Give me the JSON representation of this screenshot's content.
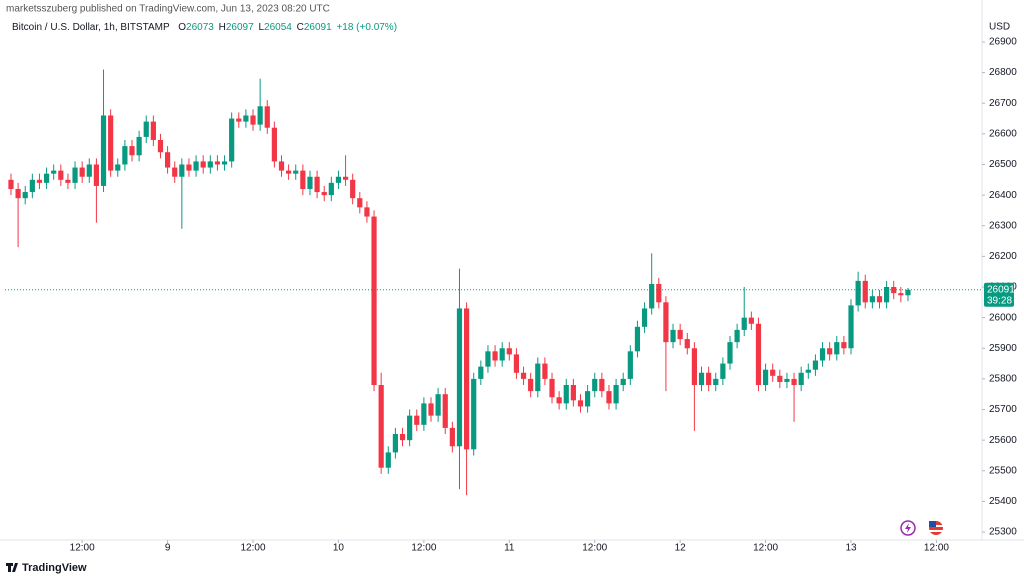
{
  "header": {
    "published": "marketsszuberg published on TradingView.com, Jun 13, 2023 08:20 UTC",
    "symbol": "Bitcoin / U.S. Dollar, 1h, BITSTAMP",
    "ohlc_labels": [
      "O",
      "H",
      "L",
      "C"
    ],
    "change": "+18 (+0.07%)",
    "currency": "USD",
    "countdown": "39:28"
  },
  "footer": {
    "brand": "TradingView"
  },
  "chart_data": {
    "type": "candlestick",
    "up_color": "#089981",
    "down_color": "#f23645",
    "grid": false,
    "ylim": [
      25274,
      27037
    ],
    "yticks": [
      25300,
      25400,
      25500,
      25600,
      25700,
      25800,
      25900,
      26000,
      26100,
      26200,
      26300,
      26400,
      26500,
      26600,
      26700,
      26800,
      26900
    ],
    "xlim": [
      -0.84,
      136.4
    ],
    "xticks": [
      {
        "value": 10,
        "label": "12:00"
      },
      {
        "value": 22,
        "label": "9"
      },
      {
        "value": 34,
        "label": "12:00"
      },
      {
        "value": 46,
        "label": "10"
      },
      {
        "value": 58,
        "label": "12:00"
      },
      {
        "value": 70,
        "label": "11"
      },
      {
        "value": 82,
        "label": "12:00"
      },
      {
        "value": 94,
        "label": "12"
      },
      {
        "value": 106,
        "label": "12:00"
      },
      {
        "value": 118,
        "label": "13"
      },
      {
        "value": 130,
        "label": "12:00"
      }
    ],
    "open": [
      26450,
      26420,
      26390,
      26410,
      26450,
      26440,
      26470,
      26480,
      26450,
      26440,
      26490,
      26460,
      26500,
      26430,
      26660,
      26480,
      26500,
      26560,
      26530,
      26590,
      26640,
      26580,
      26540,
      26490,
      26460,
      26500,
      26480,
      26510,
      26490,
      26510,
      26500,
      26510,
      26650,
      26640,
      26660,
      26630,
      26690,
      26620,
      26510,
      26480,
      26470,
      26480,
      26420,
      26460,
      26410,
      26400,
      26440,
      26460,
      26450,
      26390,
      26360,
      26330,
      25780,
      25510,
      25560,
      25620,
      25600,
      25680,
      25650,
      25720,
      25680,
      25750,
      25640,
      25580,
      26030,
      25570,
      25800,
      25840,
      25890,
      25860,
      25900,
      25880,
      25820,
      25800,
      25760,
      25850,
      25800,
      25740,
      25720,
      25780,
      25730,
      25710,
      25760,
      25800,
      25760,
      25720,
      25780,
      25800,
      25890,
      25970,
      26030,
      26110,
      26050,
      25920,
      25960,
      25930,
      25900,
      25780,
      25820,
      25780,
      25800,
      25850,
      25920,
      25960,
      26000,
      25980,
      25780,
      25830,
      25810,
      25790,
      25800,
      25780,
      25820,
      25830,
      25860,
      25900,
      25880,
      25920,
      25900,
      26040,
      26120,
      26050,
      26070,
      26050,
      26100,
      26080,
      26073
    ],
    "high": [
      26470,
      26440,
      26430,
      26470,
      26470,
      26490,
      26500,
      26500,
      26470,
      26510,
      26510,
      26520,
      26520,
      26810,
      26680,
      26520,
      26580,
      26580,
      26610,
      26660,
      26660,
      26600,
      26560,
      26510,
      26520,
      26520,
      26530,
      26530,
      26530,
      26530,
      26530,
      26670,
      26670,
      26680,
      26680,
      26780,
      26710,
      26640,
      26530,
      26500,
      26500,
      26500,
      26480,
      26480,
      26430,
      26460,
      26480,
      26530,
      26470,
      26410,
      26380,
      26350,
      25820,
      25580,
      25640,
      25640,
      25700,
      25700,
      25740,
      25740,
      25770,
      25770,
      25660,
      26160,
      26050,
      25820,
      25860,
      25910,
      25910,
      25920,
      25920,
      25900,
      25840,
      25820,
      25870,
      25870,
      25820,
      25760,
      25800,
      25800,
      25750,
      25780,
      25820,
      25820,
      25780,
      25800,
      25820,
      25910,
      25990,
      26050,
      26210,
      26130,
      26070,
      25980,
      25980,
      25950,
      25920,
      25840,
      25840,
      25820,
      25870,
      25940,
      25980,
      26100,
      26020,
      26000,
      25850,
      25850,
      25830,
      25820,
      25820,
      25840,
      25850,
      25880,
      25920,
      25920,
      25940,
      25940,
      26060,
      26150,
      26140,
      26090,
      26090,
      26120,
      26120,
      26100,
      26097
    ],
    "low": [
      26400,
      26230,
      26370,
      26390,
      26420,
      26420,
      26450,
      26430,
      26420,
      26420,
      26440,
      26440,
      26310,
      26410,
      26460,
      26460,
      26480,
      26510,
      26510,
      26570,
      26560,
      26520,
      26470,
      26440,
      26290,
      26460,
      26460,
      26470,
      26470,
      26480,
      26480,
      26490,
      26620,
      26620,
      26610,
      26610,
      26600,
      26490,
      26460,
      26450,
      26450,
      26400,
      26400,
      26390,
      26380,
      26380,
      26420,
      26430,
      26370,
      26340,
      26310,
      25760,
      25490,
      25490,
      25540,
      25580,
      25580,
      25630,
      25630,
      25660,
      25660,
      25620,
      25560,
      25440,
      25420,
      25550,
      25780,
      25820,
      25840,
      25840,
      25860,
      25800,
      25780,
      25740,
      25740,
      25780,
      25720,
      25700,
      25700,
      25710,
      25690,
      25690,
      25740,
      25740,
      25700,
      25700,
      25760,
      25780,
      25870,
      25950,
      26010,
      26030,
      25760,
      25900,
      25910,
      25880,
      25630,
      25760,
      25760,
      25760,
      25780,
      25830,
      25900,
      25940,
      25960,
      25760,
      25760,
      25790,
      25770,
      25770,
      25660,
      25760,
      25800,
      25810,
      25840,
      25860,
      25860,
      25880,
      25880,
      26020,
      26030,
      26030,
      26030,
      26030,
      26060,
      26050,
      26054
    ],
    "close": [
      26420,
      26390,
      26410,
      26450,
      26440,
      26470,
      26480,
      26450,
      26440,
      26490,
      26460,
      26500,
      26430,
      26660,
      26480,
      26500,
      26560,
      26530,
      26590,
      26640,
      26580,
      26540,
      26490,
      26460,
      26500,
      26480,
      26510,
      26490,
      26510,
      26500,
      26510,
      26650,
      26640,
      26660,
      26630,
      26690,
      26620,
      26510,
      26480,
      26470,
      26480,
      26420,
      26460,
      26410,
      26400,
      26440,
      26460,
      26450,
      26390,
      26360,
      26330,
      25780,
      25510,
      25560,
      25620,
      25600,
      25680,
      25650,
      25720,
      25680,
      25750,
      25640,
      25580,
      26030,
      25570,
      25800,
      25840,
      25890,
      25860,
      25900,
      25880,
      25820,
      25800,
      25760,
      25850,
      25800,
      25740,
      25720,
      25780,
      25730,
      25710,
      25760,
      25800,
      25760,
      25720,
      25780,
      25800,
      25890,
      25970,
      26030,
      26110,
      26050,
      25920,
      25960,
      25930,
      25900,
      25780,
      25820,
      25780,
      25800,
      25850,
      25920,
      25960,
      26000,
      25980,
      25780,
      25830,
      25810,
      25790,
      25800,
      25780,
      25820,
      25830,
      25860,
      25900,
      25880,
      25920,
      25900,
      26040,
      26120,
      26050,
      26070,
      26050,
      26100,
      26080,
      26073,
      26091
    ]
  }
}
